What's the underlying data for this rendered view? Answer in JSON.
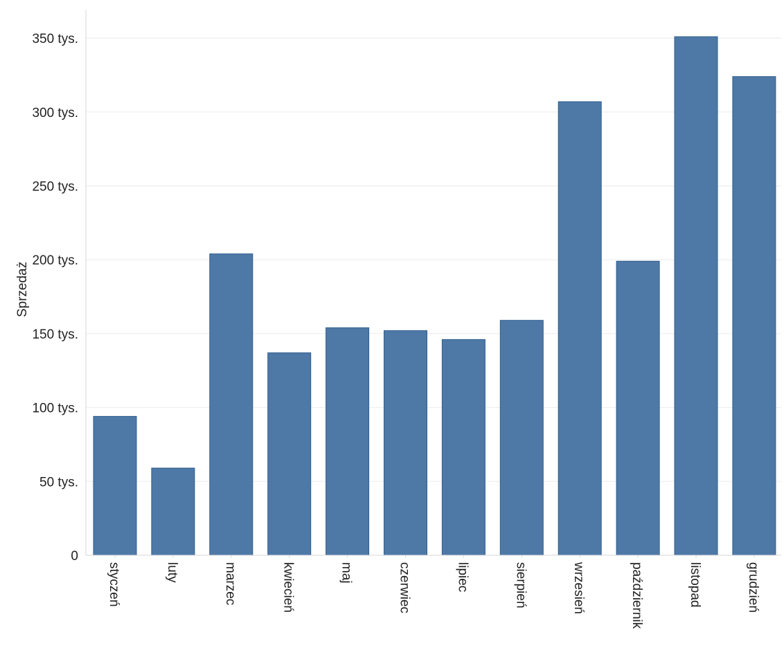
{
  "chart_data": {
    "type": "bar",
    "title": "",
    "xlabel": "",
    "ylabel": "Sprzedaż",
    "categories": [
      "styczeń",
      "luty",
      "marzec",
      "kwiecień",
      "maj",
      "czerwiec",
      "lipiec",
      "sierpień",
      "wrzesień",
      "październik",
      "listopad",
      "grudzień"
    ],
    "values": [
      94000,
      59000,
      204000,
      137000,
      154000,
      152000,
      146000,
      159000,
      307000,
      199000,
      351000,
      324000
    ],
    "ylim": [
      0,
      360000
    ],
    "yticks": [
      0,
      50000,
      100000,
      150000,
      200000,
      250000,
      300000,
      350000
    ],
    "ytick_labels": [
      "0",
      "50 tys.",
      "100 tys.",
      "150 tys.",
      "200 tys.",
      "250 tys.",
      "300 tys.",
      "350 tys."
    ],
    "grid": true,
    "legend": "none",
    "colors": {
      "bar": "#4e79a7",
      "bar_edge": "#2f5d8c",
      "grid": "#ebebeb",
      "axis": "#d7d7d7"
    }
  }
}
